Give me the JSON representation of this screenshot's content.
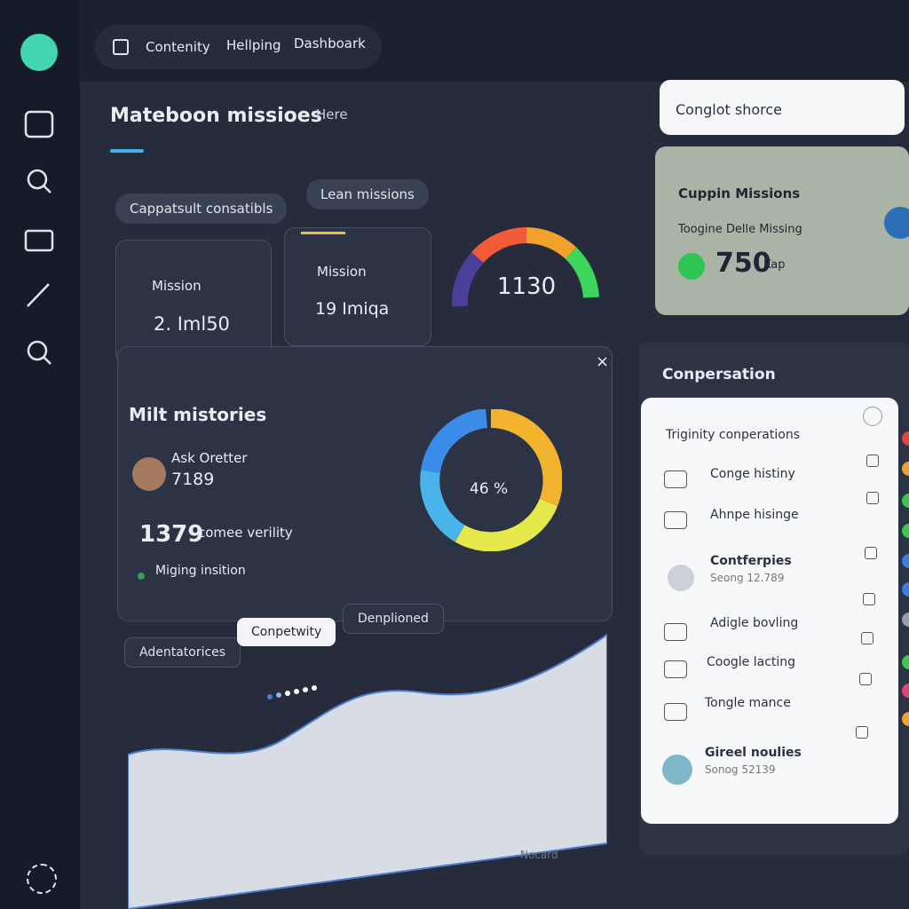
{
  "nav": {
    "items": [
      "Contenity",
      "Hellping",
      "Dashboark"
    ]
  },
  "header": {
    "title": "Mateboon missioes",
    "link": "Here"
  },
  "pills": [
    "Cappatsult consatibls",
    "Lean missions"
  ],
  "stats": [
    {
      "label": "Mission",
      "value": "2. Iml50"
    },
    {
      "label": "Mission",
      "value": "19 Imiqa"
    }
  ],
  "gauge": {
    "value": "1130"
  },
  "history": {
    "title": "Milt mistories",
    "user": "Ask Oretter",
    "user_value": "7189",
    "big": "1379",
    "big_label": "comee verility",
    "status": "Miging insition",
    "donut": "46 %"
  },
  "tabs": [
    "Adentatorices",
    "Conpetwity",
    "Denplioned"
  ],
  "footer": "Nocard",
  "search": "Conglot shorce",
  "map_card": {
    "title": "Cuppin Missions",
    "subtitle": "Toogine Delle Missing",
    "value": "750",
    "unit": "Kap"
  },
  "conversation": {
    "title": "Conpersation",
    "panel_title": "Triginity conperations",
    "items": [
      {
        "label": "Conge histiny"
      },
      {
        "label": "Ahnpe hisinge"
      },
      {
        "label": "Contferpies",
        "sub": "Seong 12.789"
      },
      {
        "label": "Adigle bovling"
      },
      {
        "label": "Coogle lacting"
      },
      {
        "label": "Tongle mance"
      },
      {
        "label": "Gireel noulies",
        "sub": "Sonog 52139"
      }
    ]
  }
}
